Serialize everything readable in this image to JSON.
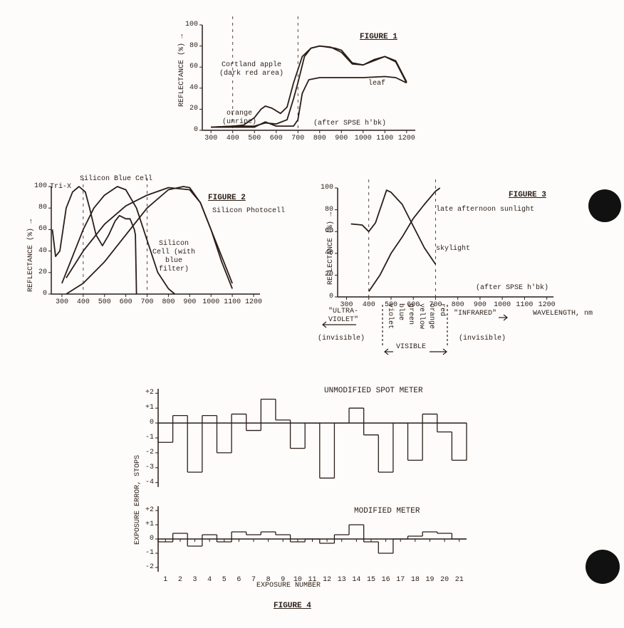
{
  "chart_data": [
    {
      "type": "line",
      "title": "FIGURE 1",
      "ylabel": "REFLECTANCE (%) →",
      "annotations": [
        "(after SPSE h'bk)"
      ],
      "xlim": [
        260,
        1240
      ],
      "xticks": [
        300,
        400,
        500,
        600,
        700,
        800,
        900,
        1000,
        1100,
        1200
      ],
      "ylim": [
        0,
        100
      ],
      "yticks": [
        0,
        20,
        40,
        60,
        80,
        100
      ],
      "reference_lines": [
        400,
        700
      ],
      "series": [
        {
          "name": "Cortland apple (dark red area)",
          "color": "#2b1d16",
          "x": [
            300,
            400,
            500,
            550,
            600,
            650,
            680,
            700,
            730,
            760,
            800,
            870,
            900,
            950,
            1000,
            1050,
            1100,
            1150,
            1200
          ],
          "values": [
            3,
            4,
            4,
            7,
            6,
            10,
            30,
            45,
            70,
            78,
            80,
            78,
            76,
            64,
            62,
            66,
            70,
            65,
            45
          ]
        },
        {
          "name": "orange (unripe)",
          "color": "#2b1d16",
          "x": [
            300,
            400,
            450,
            500,
            530,
            550,
            580,
            620,
            650,
            680,
            720,
            760,
            800,
            850,
            900,
            950,
            1000,
            1050,
            1100,
            1150,
            1200
          ],
          "values": [
            3,
            4,
            5,
            12,
            20,
            23,
            21,
            16,
            22,
            45,
            70,
            78,
            80,
            79,
            74,
            63,
            62,
            67,
            70,
            66,
            46
          ]
        },
        {
          "name": "leaf",
          "color": "#2b1d16",
          "x": [
            300,
            400,
            500,
            550,
            600,
            680,
            700,
            720,
            750,
            800,
            900,
            1000,
            1100,
            1150,
            1200
          ],
          "values": [
            3,
            3,
            3,
            8,
            4,
            4,
            10,
            35,
            48,
            50,
            50,
            50,
            51,
            50,
            45
          ]
        }
      ]
    },
    {
      "type": "line",
      "title": "FIGURE 2",
      "ylabel": "REFLECTANCE (%) →",
      "xlim": [
        250,
        1230
      ],
      "xticks": [
        300,
        400,
        500,
        600,
        700,
        800,
        900,
        1000,
        1100,
        1200
      ],
      "ylim": [
        0,
        100
      ],
      "yticks": [
        0,
        20,
        40,
        60,
        80,
        100
      ],
      "reference_lines": [
        400,
        700
      ],
      "series": [
        {
          "name": "Tri-X",
          "color": "#2b1d16",
          "x": [
            255,
            270,
            290,
            320,
            350,
            380,
            410,
            430,
            460,
            490,
            520,
            550,
            570,
            600,
            620,
            640,
            645,
            650
          ],
          "values": [
            60,
            35,
            40,
            80,
            95,
            100,
            95,
            80,
            55,
            45,
            55,
            68,
            73,
            70,
            70,
            60,
            55,
            0
          ]
        },
        {
          "name": "Silicon Blue Cell",
          "color": "#2b1d16",
          "x": [
            300,
            350,
            400,
            450,
            500,
            560,
            600,
            650,
            700,
            750,
            800,
            830
          ],
          "values": [
            10,
            35,
            60,
            80,
            92,
            100,
            97,
            80,
            50,
            20,
            5,
            0
          ]
        },
        {
          "name": "Silicon Photocell",
          "color": "#2b1d16",
          "x": [
            320,
            400,
            500,
            600,
            700,
            800,
            900,
            950,
            1000,
            1050,
            1100
          ],
          "values": [
            15,
            40,
            65,
            82,
            92,
            99,
            97,
            85,
            60,
            35,
            10
          ]
        },
        {
          "name": "Silicon Cell (with blue filter)",
          "color": "#2b1d16",
          "x": [
            320,
            400,
            500,
            600,
            700,
            800,
            870,
            900,
            950,
            1000,
            1050,
            1100
          ],
          "values": [
            0,
            10,
            30,
            55,
            80,
            97,
            100,
            99,
            85,
            60,
            30,
            5
          ]
        }
      ]
    },
    {
      "type": "line",
      "title": "FIGURE 3",
      "ylabel": "REFLECTANCE (%) →",
      "annotations": [
        "(after SPSE h'bk)",
        "WAVELENGTH, nm",
        "\"ULTRA-VIOLET\"",
        "(invisible)",
        "VISIBLE",
        "\"INFRARED\"",
        "(invisible)"
      ],
      "bands": [
        "violet",
        "blue",
        "green",
        "yellow",
        "orange",
        "red"
      ],
      "xlim": [
        260,
        1230
      ],
      "xticks": [
        300,
        400,
        500,
        600,
        700,
        800,
        900,
        1000,
        1100,
        1200
      ],
      "ylim": [
        0,
        100
      ],
      "yticks": [
        0,
        20,
        40,
        60,
        80,
        100
      ],
      "reference_lines": [
        400,
        700
      ],
      "series": [
        {
          "name": "late afternoon sunlight",
          "color": "#2b1d16",
          "x": [
            400,
            450,
            500,
            550,
            600,
            650,
            700,
            720
          ],
          "values": [
            5,
            20,
            40,
            55,
            72,
            85,
            97,
            100
          ]
        },
        {
          "name": "skylight",
          "color": "#2b1d16",
          "x": [
            320,
            370,
            400,
            430,
            480,
            500,
            550,
            600,
            650,
            700
          ],
          "values": [
            67,
            66,
            60,
            68,
            98,
            96,
            85,
            65,
            45,
            30
          ]
        }
      ]
    },
    {
      "type": "step",
      "title": "UNMODIFIED SPOT METER",
      "ylabel": "EXPOSURE ERROR, STOPS",
      "xlim": [
        0.5,
        21.5
      ],
      "ylim": [
        -4.3,
        2.3
      ],
      "yticks": [
        {
          "value": 2,
          "label": "+2"
        },
        {
          "value": 1,
          "label": "+1"
        },
        0,
        -1,
        -2,
        -3,
        -4
      ],
      "x": [
        1,
        2,
        3,
        4,
        5,
        6,
        7,
        8,
        9,
        10,
        11,
        12,
        13,
        14,
        15,
        16,
        17,
        18,
        19,
        20,
        21
      ],
      "values": [
        -1.3,
        0.5,
        -3.3,
        0.5,
        -2.0,
        0.6,
        -0.5,
        1.6,
        0.2,
        -1.7,
        0.0,
        -3.7,
        0.0,
        1.0,
        -0.8,
        -3.3,
        0.0,
        -2.5,
        0.6,
        -0.6,
        -2.5
      ],
      "color": "#2b1d16"
    },
    {
      "type": "step",
      "title": "MODIFIED METER",
      "xlabel": "EXPOSURE NUMBER",
      "caption": "FIGURE 4",
      "xlim": [
        0.5,
        21.5
      ],
      "ylim": [
        -2.3,
        2.3
      ],
      "yticks": [
        {
          "value": 2,
          "label": "+2"
        },
        {
          "value": 1,
          "label": "+1"
        },
        0,
        -1,
        -2
      ],
      "xticks": [
        1,
        2,
        3,
        4,
        5,
        6,
        7,
        8,
        9,
        10,
        11,
        12,
        13,
        14,
        15,
        16,
        17,
        18,
        19,
        20,
        21
      ],
      "x": [
        1,
        2,
        3,
        4,
        5,
        6,
        7,
        8,
        9,
        10,
        11,
        12,
        13,
        14,
        15,
        16,
        17,
        18,
        19,
        20,
        21
      ],
      "values": [
        -0.2,
        0.4,
        -0.5,
        0.3,
        -0.2,
        0.5,
        0.3,
        0.5,
        0.3,
        -0.2,
        0.0,
        -0.3,
        0.3,
        1.0,
        -0.2,
        -1.0,
        0.0,
        0.2,
        0.5,
        0.4,
        0.0
      ],
      "color": "#2b1d16"
    }
  ]
}
